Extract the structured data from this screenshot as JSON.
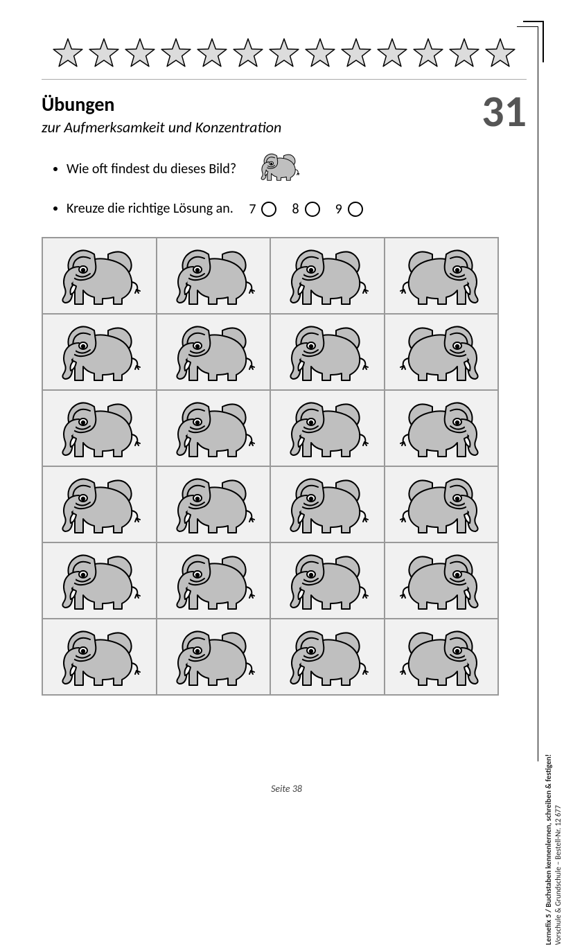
{
  "header": {
    "title": "Übungen",
    "subtitle": "zur Aufmerksamkeit und Konzentration",
    "page_number": "31"
  },
  "stars": {
    "count": 13,
    "fill": "#dcdcdc",
    "stroke": "#000000",
    "stroke_width": 1.5
  },
  "questions": {
    "q1": "Wie oft findest du dieses Bild?",
    "q2": "Kreuze die richtige Lösung an.",
    "answers": [
      {
        "label": "7"
      },
      {
        "label": "8"
      },
      {
        "label": "9"
      }
    ]
  },
  "elephant_colors": {
    "body": "#bfbfbf",
    "tusk": "#ffffff",
    "eye_white": "#ffffff",
    "stroke": "#000000"
  },
  "grid": {
    "rows": 6,
    "cols": 4,
    "cell_bg": "#f1f1f1",
    "border_color": "#999999",
    "cells": [
      [
        {
          "facing": "left",
          "tusk": true
        },
        {
          "facing": "left",
          "tusk": true
        },
        {
          "facing": "left",
          "tusk": true
        },
        {
          "facing": "right",
          "tusk": true
        }
      ],
      [
        {
          "facing": "left",
          "tusk": true
        },
        {
          "facing": "left",
          "tusk": true
        },
        {
          "facing": "left",
          "tusk": true
        },
        {
          "facing": "right",
          "tusk": true
        }
      ],
      [
        {
          "facing": "left",
          "tusk": true
        },
        {
          "facing": "left",
          "tusk": true
        },
        {
          "facing": "left",
          "tusk": true
        },
        {
          "facing": "right",
          "tusk": true
        }
      ],
      [
        {
          "facing": "left",
          "tusk": true
        },
        {
          "facing": "left",
          "tusk": true
        },
        {
          "facing": "left",
          "tusk": true
        },
        {
          "facing": "right",
          "tusk": true
        }
      ],
      [
        {
          "facing": "left",
          "tusk": true
        },
        {
          "facing": "left",
          "tusk": true
        },
        {
          "facing": "left",
          "tusk": true
        },
        {
          "facing": "right",
          "tusk": true
        }
      ],
      [
        {
          "facing": "left",
          "tusk": true
        },
        {
          "facing": "left",
          "tusk": true
        },
        {
          "facing": "left",
          "tusk": true
        },
        {
          "facing": "right",
          "tusk": true
        }
      ]
    ]
  },
  "footer": {
    "page_label": "Seite 38"
  },
  "credit": {
    "line1": "Lernefix 5 / Buchstaben kennenlernen, schreiben & festigen!",
    "line2": "Vorschule & Grundschule  –  Bestell-Nr. 12 677"
  }
}
